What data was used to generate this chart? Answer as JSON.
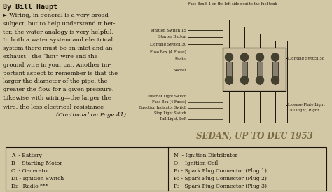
{
  "bg_color": "#d3c8a6",
  "title_author": "By Bill Haupt",
  "fuse_box_title": "Fuse Box S 1 on the left side next to the fuel tank",
  "body_text_lines": [
    "► Wiring, in general is a very broad",
    "subject, but to help understand it bet-",
    "ter, the water analogy is very helpful.",
    "In both a water system and electrical",
    "system there must be an inlet and an",
    "exhaust—the “hot” wire and the",
    "ground wire in your car. Another im-",
    "portant aspect to remember is that the",
    "larger the diameter of the pipe, the",
    "greater the flow for a given pressure.",
    "Likewise with wiring—the larger the",
    "wire, the less electrical resistance",
    "(Continued on Page 41)"
  ],
  "diagram_labels_left_top": [
    "Ignition Switch 15",
    "Starter Button",
    "Lighting Switch 30",
    "Fuse Box (4 Fuses)",
    "Radio"
  ],
  "diagram_label_socket": "Socket",
  "diagram_labels_left_bottom": [
    "Interior Light Switch",
    "Fuse Box (4 Fuses)",
    "Direction Indicator Switch",
    "Stop Light Switch",
    "Tail Light, Left"
  ],
  "diagram_label_right_top": "Lighting Switch 58",
  "diagram_label_right_bottom1": "License Plate Light",
  "diagram_label_right_bottom2": "Tail Light, Right",
  "sedan_text": "SEDAN, UP TO DEC 1953",
  "legend_left": [
    "A  - Battery",
    "B  - Starting Motor",
    "C  - Generator",
    "D₁ - Ignition Switch",
    "D₂ - Radio ***"
  ],
  "legend_right": [
    "N  - Ignition Distributor",
    "O  - Ignition Coil",
    "P₁ - Spark Plug Connector (Plug 1)",
    "P₂ - Spark Plug Connector (Plug 2)",
    "P₃ - Spark Plug Connector (Plug 3)"
  ],
  "text_color": "#1a1408",
  "line_color": "#1a1408",
  "box_bg": "#ccc0a0",
  "fuse_color": "#888070",
  "connector_color": "#444030",
  "sedan_color": "#7a6a40",
  "body_fontsize": 6.0,
  "title_fontsize": 7.2,
  "diagram_label_fontsize": 3.9,
  "legend_fontsize": 5.5,
  "sedan_fontsize": 8.5
}
